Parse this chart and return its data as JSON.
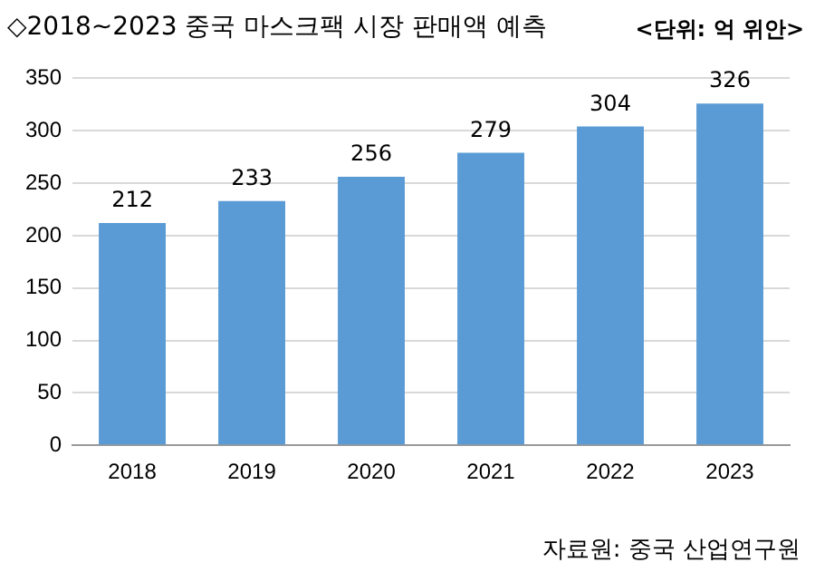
{
  "chart_data": {
    "type": "bar",
    "title": "◇2018~2023 중국 마스크팩 시장 판매액 예측",
    "annotations": [
      "<단위: 억 위안>",
      "자료원: 중국 산업연구원"
    ],
    "categories": [
      "2018",
      "2019",
      "2020",
      "2021",
      "2022",
      "2023"
    ],
    "values": [
      212,
      233,
      256,
      279,
      304,
      326
    ],
    "color": "#5b9bd5",
    "ylim": [
      0,
      350
    ],
    "yticks": [
      0,
      50,
      100,
      150,
      200,
      250,
      300,
      350
    ],
    "grid": "y",
    "data_labels": true
  }
}
